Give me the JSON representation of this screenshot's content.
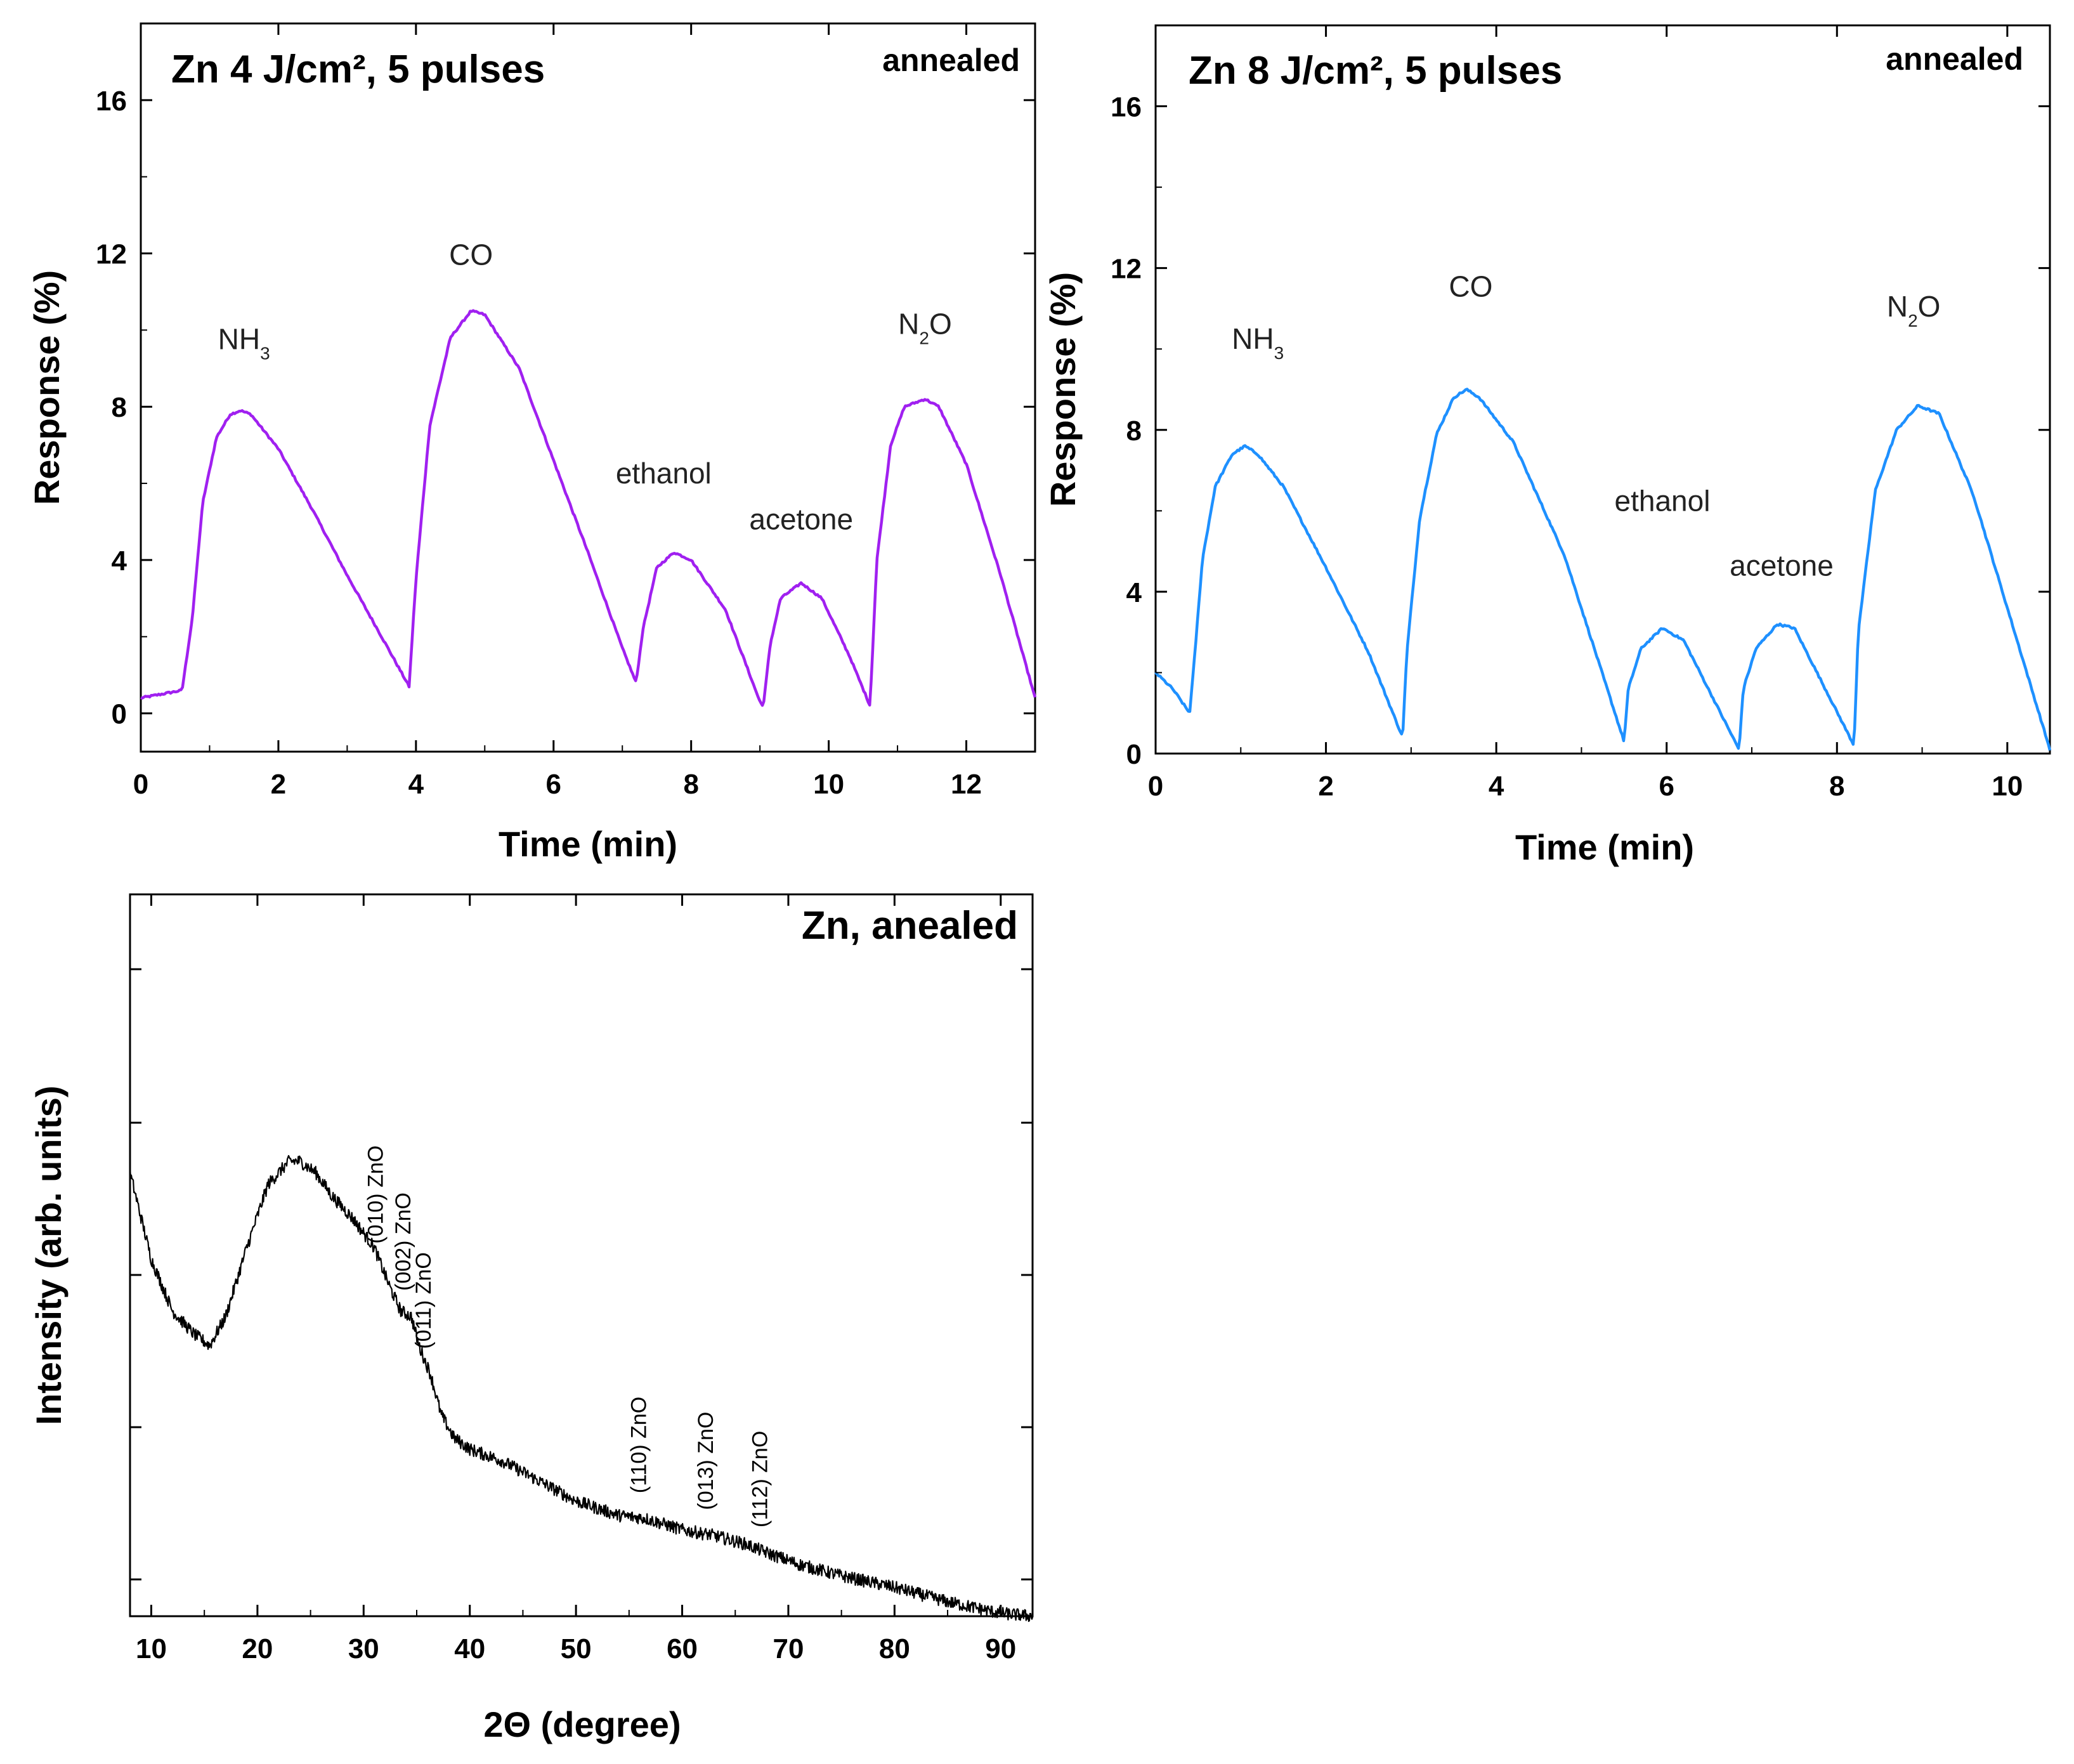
{
  "chart_data": [
    {
      "id": "panel-a",
      "type": "line",
      "title": "Zn 4 J/cm², 5 pulses",
      "corner_label": "annealed",
      "xlabel": "Time (min)",
      "ylabel": "Response (%)",
      "xlim": [
        0,
        13
      ],
      "ylim": [
        -1,
        18
      ],
      "xticks": [
        0,
        2,
        4,
        6,
        8,
        10,
        12
      ],
      "yticks": [
        0,
        4,
        8,
        12,
        16
      ],
      "color": "#a020f0",
      "series": [
        {
          "name": "response",
          "x": [
            0,
            0.3,
            0.6,
            0.75,
            0.9,
            1.1,
            1.3,
            1.45,
            1.6,
            2.0,
            2.5,
            3.0,
            3.5,
            3.9,
            4.0,
            4.2,
            4.5,
            4.8,
            5.0,
            5.5,
            6.0,
            6.5,
            7.0,
            7.2,
            7.3,
            7.5,
            7.75,
            8.0,
            8.5,
            9.0,
            9.05,
            9.15,
            9.3,
            9.6,
            9.9,
            10.3,
            10.6,
            10.7,
            10.9,
            11.1,
            11.4,
            11.6,
            12.0,
            12.5,
            13.0
          ],
          "y": [
            0.4,
            0.5,
            0.6,
            2.5,
            5.5,
            7.2,
            7.8,
            7.9,
            7.8,
            6.9,
            5.3,
            3.6,
            2.0,
            0.7,
            3.5,
            7.5,
            9.8,
            10.5,
            10.4,
            9.0,
            6.6,
            4.2,
            1.7,
            0.8,
            2.2,
            3.8,
            4.2,
            4.0,
            2.7,
            0.3,
            0.2,
            1.8,
            3.0,
            3.4,
            3.0,
            1.5,
            0.2,
            4.0,
            7.0,
            8.0,
            8.2,
            8.0,
            6.5,
            3.6,
            0.4
          ]
        }
      ],
      "annotations": [
        {
          "text": "NH",
          "sub": "3",
          "x": 1.5,
          "y": 9.5
        },
        {
          "text": "CO",
          "x": 4.8,
          "y": 11.7
        },
        {
          "text": "ethanol",
          "x": 7.6,
          "y": 6.0
        },
        {
          "text": "acetone",
          "x": 9.6,
          "y": 4.8
        },
        {
          "text": "N",
          "sub": "2",
          "tail": "O",
          "x": 11.4,
          "y": 9.9
        }
      ]
    },
    {
      "id": "panel-b",
      "type": "line",
      "title": "Zn 8 J/cm², 5 pulses",
      "corner_label": "annealed",
      "xlabel": "Time (min)",
      "ylabel": "Response (%)",
      "xlim": [
        0,
        10.5
      ],
      "ylim": [
        0,
        18
      ],
      "xticks": [
        0,
        2,
        4,
        6,
        8,
        10
      ],
      "yticks": [
        0,
        4,
        8,
        12,
        16
      ],
      "color": "#1e90ff",
      "series": [
        {
          "name": "response",
          "x": [
            0,
            0.2,
            0.4,
            0.45,
            0.55,
            0.7,
            0.9,
            1.05,
            1.2,
            1.5,
            2.0,
            2.5,
            2.9,
            2.95,
            3.1,
            3.3,
            3.5,
            3.65,
            3.8,
            4.2,
            4.8,
            5.5,
            5.55,
            5.7,
            5.95,
            6.2,
            6.85,
            6.9,
            7.05,
            7.3,
            7.5,
            8.2,
            8.25,
            8.45,
            8.7,
            8.95,
            9.2,
            9.6,
            10.0,
            10.5
          ],
          "y": [
            2.0,
            1.6,
            1.0,
            2.2,
            4.8,
            6.6,
            7.4,
            7.6,
            7.4,
            6.6,
            4.6,
            2.5,
            0.4,
            2.5,
            5.8,
            7.9,
            8.8,
            9.0,
            8.8,
            7.7,
            4.9,
            0.3,
            1.6,
            2.6,
            3.1,
            2.8,
            0.1,
            1.6,
            2.6,
            3.2,
            3.1,
            0.2,
            3.0,
            6.5,
            8.0,
            8.6,
            8.4,
            6.4,
            3.6,
            0.1
          ]
        }
      ],
      "annotations": [
        {
          "text": "NH",
          "sub": "3",
          "x": 1.2,
          "y": 10.0
        },
        {
          "text": "CO",
          "x": 3.7,
          "y": 11.3
        },
        {
          "text": "ethanol",
          "x": 5.95,
          "y": 6.0
        },
        {
          "text": "acetone",
          "x": 7.35,
          "y": 4.4
        },
        {
          "text": "N",
          "sub": "2",
          "tail": "O",
          "x": 8.9,
          "y": 10.8
        }
      ]
    },
    {
      "id": "panel-c",
      "type": "line",
      "title": "Zn, anealed",
      "xlabel": "2Θ (degree)",
      "ylabel": "Intensity (arb. units)",
      "xlim": [
        8,
        93
      ],
      "ylim": [
        0,
        1
      ],
      "xticks": [
        10,
        20,
        30,
        40,
        50,
        60,
        70,
        80,
        90
      ],
      "color": "#000000",
      "series": [
        {
          "name": "xrd",
          "x": [
            8,
            10,
            12,
            14,
            15.5,
            17,
            19,
            21,
            23,
            24,
            25.5,
            27,
            29,
            31,
            32.5,
            33.5,
            34.5,
            35.2,
            36.3,
            37.3,
            38.5,
            40,
            43,
            46,
            50,
            54,
            56.5,
            60,
            63,
            66,
            68,
            71,
            75,
            80,
            85,
            90,
            93
          ],
          "y": [
            0.77,
            0.62,
            0.53,
            0.49,
            0.47,
            0.52,
            0.64,
            0.75,
            0.79,
            0.79,
            0.77,
            0.73,
            0.69,
            0.64,
            0.57,
            0.53,
            0.52,
            0.47,
            0.42,
            0.35,
            0.31,
            0.29,
            0.27,
            0.24,
            0.2,
            0.175,
            0.17,
            0.15,
            0.14,
            0.125,
            0.11,
            0.09,
            0.07,
            0.05,
            0.025,
            0.005,
            0.0
          ]
        }
      ],
      "peak_labels": [
        {
          "text": "(010) ZnO",
          "x": 31.8
        },
        {
          "text": "(002) ZnO",
          "x": 34.4
        },
        {
          "text": "(011) ZnO",
          "x": 36.3
        },
        {
          "text": "(110) ZnO",
          "x": 56.6
        },
        {
          "text": "(013) ZnO",
          "x": 62.9
        },
        {
          "text": "(112) ZnO",
          "x": 68.0
        }
      ]
    }
  ]
}
